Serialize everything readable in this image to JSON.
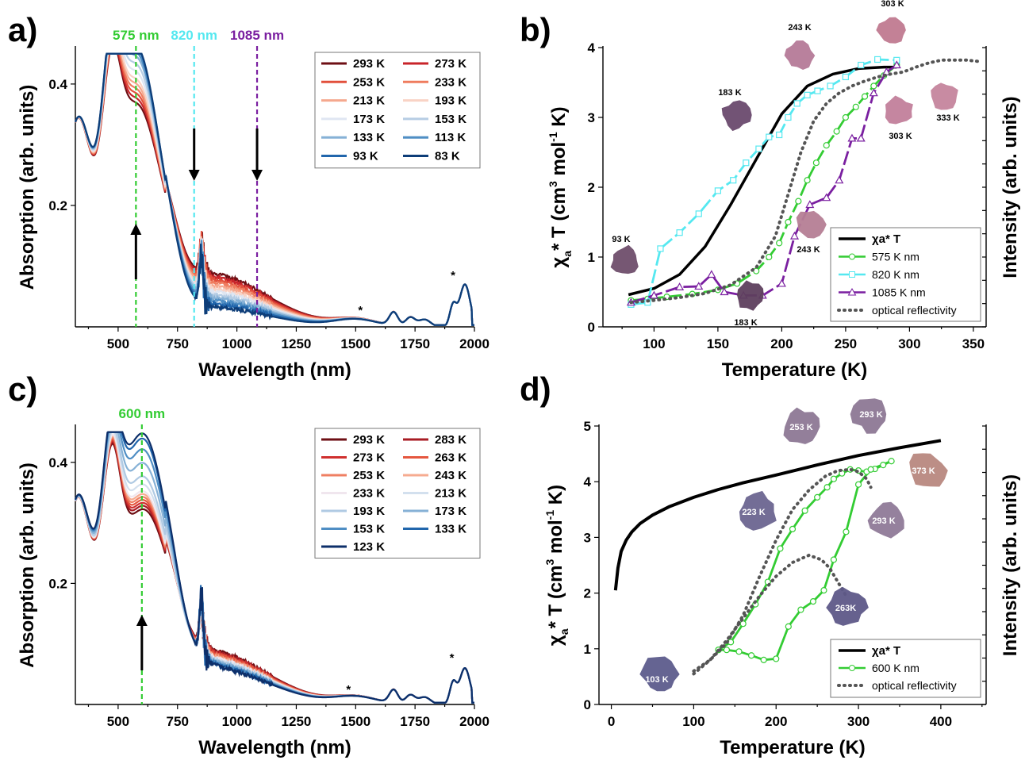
{
  "chart_data": [
    {
      "panel": "a)",
      "type": "line",
      "xlabel": "Wavelength (nm)",
      "ylabel": "Absorption (arb. units)",
      "xlim": [
        320,
        2000
      ],
      "ylim": [
        0.0,
        0.46
      ],
      "xticks": [
        "500",
        "750",
        "1000",
        "1250",
        "1500",
        "1750",
        "2000"
      ],
      "yticks": [
        "0.2",
        "0.4"
      ],
      "markers": [
        {
          "label": "575 nm",
          "x": 575,
          "color": "#33cc33"
        },
        {
          "label": "820 nm",
          "x": 820,
          "color": "#55e8f0"
        },
        {
          "label": "1085 nm",
          "x": 1085,
          "color": "#7a1fa0"
        }
      ],
      "annotations": [
        "*",
        "*"
      ],
      "legend": [
        "293 K",
        "273 K",
        "253 K",
        "233 K",
        "213 K",
        "193 K",
        "173 K",
        "153 K",
        "133 K",
        "113 K",
        "93 K",
        "83 K"
      ],
      "legend_colors": [
        "#6e0f14",
        "#c8242a",
        "#e2503c",
        "#ef7c5e",
        "#f5a88e",
        "#f9d3c5",
        "#dfe6f2",
        "#b6cde4",
        "#86b1d6",
        "#4f8ec4",
        "#2166ac",
        "#0d3d78"
      ],
      "series": [
        {
          "name": "293 K",
          "peak": 0.295
        },
        {
          "name": "273 K",
          "peak": 0.305
        },
        {
          "name": "253 K",
          "peak": 0.315
        },
        {
          "name": "233 K",
          "peak": 0.325
        },
        {
          "name": "213 K",
          "peak": 0.335
        },
        {
          "name": "193 K",
          "peak": 0.345
        },
        {
          "name": "173 K",
          "peak": 0.36
        },
        {
          "name": "153 K",
          "peak": 0.375
        },
        {
          "name": "133 K",
          "peak": 0.39
        },
        {
          "name": "113 K",
          "peak": 0.4
        },
        {
          "name": "93 K",
          "peak": 0.41
        },
        {
          "name": "83 K",
          "peak": 0.415
        }
      ]
    },
    {
      "panel": "b)",
      "type": "line",
      "xlabel": "Temperature (K)",
      "ylabel": "χa* T (cm3 mol-1 K)",
      "ylabel_right": "Intensity (arb. units)",
      "xlim": [
        60,
        360
      ],
      "ylim": [
        0,
        4
      ],
      "xticks": [
        "100",
        "150",
        "200",
        "250",
        "300",
        "350"
      ],
      "yticks": [
        "0",
        "1",
        "2",
        "3",
        "4"
      ],
      "legend": [
        "χa* T",
        "575 K nm",
        "820 K nm",
        "1085 K nm",
        "optical reflectivity"
      ],
      "crystal_labels": [
        "303 K",
        "243 K",
        "183 K",
        "333 K",
        "303 K",
        "93 K",
        "243 K",
        "183 K"
      ],
      "series": [
        {
          "name": "χa* T",
          "color": "#000000",
          "x": [
            80,
            100,
            120,
            140,
            160,
            180,
            200,
            220,
            240,
            260,
            280,
            290
          ],
          "y": [
            0.46,
            0.55,
            0.75,
            1.15,
            1.75,
            2.4,
            3.05,
            3.45,
            3.62,
            3.7,
            3.72,
            3.72
          ]
        },
        {
          "name": "575 K nm",
          "color": "#33cc33",
          "x": [
            82,
            95,
            110,
            130,
            150,
            165,
            180,
            190,
            198,
            205,
            213,
            220,
            227,
            235,
            243,
            250,
            258,
            265,
            272,
            280,
            290
          ],
          "y": [
            0.38,
            0.4,
            0.43,
            0.47,
            0.53,
            0.62,
            0.8,
            1.0,
            1.2,
            1.5,
            1.8,
            2.1,
            2.35,
            2.6,
            2.8,
            3.0,
            3.15,
            3.3,
            3.45,
            3.6,
            3.75
          ]
        },
        {
          "name": "820 K nm",
          "color": "#55e8f0",
          "x": [
            82,
            95,
            105,
            120,
            135,
            150,
            162,
            172,
            182,
            190,
            198,
            205,
            212,
            220,
            228,
            238,
            250,
            262,
            275,
            290
          ],
          "y": [
            0.32,
            0.35,
            1.12,
            1.35,
            1.62,
            1.95,
            2.1,
            2.35,
            2.55,
            2.72,
            2.75,
            3.0,
            3.2,
            3.32,
            3.38,
            3.45,
            3.58,
            3.75,
            3.83,
            3.82
          ]
        },
        {
          "name": "1085 K nm",
          "color": "#7a1fa0",
          "x": [
            82,
            100,
            120,
            135,
            145,
            155,
            170,
            185,
            200,
            210,
            222,
            235,
            245,
            255,
            262,
            272,
            282,
            290
          ],
          "y": [
            0.35,
            0.45,
            0.57,
            0.58,
            0.75,
            0.5,
            0.45,
            0.45,
            0.62,
            1.3,
            1.75,
            1.85,
            2.1,
            2.7,
            2.7,
            3.35,
            3.65,
            3.75
          ]
        },
        {
          "name": "optical reflectivity",
          "color": "#555555",
          "x": [
            82,
            100,
            120,
            140,
            160,
            180,
            195,
            205,
            215,
            225,
            235,
            245,
            255,
            265,
            275,
            285,
            295,
            305,
            315,
            325,
            335,
            345,
            355
          ],
          "y": [
            0.35,
            0.38,
            0.42,
            0.48,
            0.6,
            0.85,
            1.3,
            1.9,
            2.5,
            2.95,
            3.2,
            3.35,
            3.45,
            3.52,
            3.58,
            3.62,
            3.65,
            3.72,
            3.78,
            3.82,
            3.82,
            3.82,
            3.8
          ]
        }
      ]
    },
    {
      "panel": "c)",
      "type": "line",
      "xlabel": "Wavelength (nm)",
      "ylabel": "Absorption (arb. units)",
      "xlim": [
        320,
        2000
      ],
      "ylim": [
        0.0,
        0.46
      ],
      "xticks": [
        "500",
        "750",
        "1000",
        "1250",
        "1500",
        "1750",
        "2000"
      ],
      "yticks": [
        "0.2",
        "0.4"
      ],
      "markers": [
        {
          "label": "600 nm",
          "x": 600,
          "color": "#33cc33"
        }
      ],
      "annotations": [
        "*",
        "*"
      ],
      "legend": [
        "293 K",
        "283 K",
        "273 K",
        "263 K",
        "253 K",
        "243 K",
        "233 K",
        "213 K",
        "193 K",
        "173 K",
        "153 K",
        "133 K",
        "123 K"
      ],
      "legend_colors": [
        "#6e0f14",
        "#a81c24",
        "#d0302e",
        "#e5573f",
        "#ef7f62",
        "#f6ab90",
        "#f0e6ee",
        "#d3e0ee",
        "#b0cae3",
        "#86b1d6",
        "#4f8ec4",
        "#2166ac",
        "#0d2f6a"
      ],
      "series": [
        {
          "name": "293 K",
          "peak": 0.245
        },
        {
          "name": "283 K",
          "peak": 0.252
        },
        {
          "name": "273 K",
          "peak": 0.258
        },
        {
          "name": "263 K",
          "peak": 0.264
        },
        {
          "name": "253 K",
          "peak": 0.27
        },
        {
          "name": "243 K",
          "peak": 0.276
        },
        {
          "name": "233 K",
          "peak": 0.282
        },
        {
          "name": "213 K",
          "peak": 0.295
        },
        {
          "name": "193 K",
          "peak": 0.31
        },
        {
          "name": "173 K",
          "peak": 0.335
        },
        {
          "name": "153 K",
          "peak": 0.36
        },
        {
          "name": "133 K",
          "peak": 0.38
        },
        {
          "name": "123 K",
          "peak": 0.39
        }
      ]
    },
    {
      "panel": "d)",
      "type": "line",
      "xlabel": "Temperature (K)",
      "ylabel": "χa* T (cm3 mol-1 K)",
      "ylabel_right": "Intensity (arb. units)",
      "xlim": [
        -15,
        455
      ],
      "ylim": [
        0,
        5
      ],
      "xticks": [
        "0",
        "100",
        "200",
        "300",
        "400"
      ],
      "yticks": [
        "0",
        "1",
        "2",
        "3",
        "4",
        "5"
      ],
      "legend": [
        "χa* T",
        "600 K nm",
        "optical reflectivity"
      ],
      "crystal_labels": [
        "253 K",
        "293 K",
        "373 K",
        "223 K",
        "293 K",
        "263K",
        "103 K"
      ],
      "series": [
        {
          "name": "χa* T",
          "color": "#000000",
          "x": [
            5,
            8,
            12,
            18,
            25,
            35,
            50,
            70,
            100,
            130,
            160,
            200,
            250,
            300,
            350,
            400
          ],
          "y": [
            2.05,
            2.45,
            2.75,
            2.95,
            3.1,
            3.25,
            3.4,
            3.55,
            3.72,
            3.86,
            3.98,
            4.12,
            4.3,
            4.47,
            4.61,
            4.74
          ]
        },
        {
          "name": "600 K nm",
          "color": "#33cc33",
          "x": [
            130,
            145,
            160,
            175,
            190,
            205,
            220,
            235,
            250,
            262,
            270,
            280,
            290,
            300,
            310,
            320,
            330,
            340,
            315,
            300,
            285,
            270,
            258,
            245,
            230,
            215,
            200,
            185,
            170,
            155,
            140,
            130
          ],
          "y": [
            0.98,
            1.12,
            1.45,
            1.8,
            2.2,
            2.8,
            3.15,
            3.48,
            3.72,
            3.9,
            4.05,
            4.15,
            4.22,
            4.2,
            4.18,
            4.23,
            4.3,
            4.37,
            4.22,
            3.95,
            3.1,
            2.6,
            2.05,
            1.85,
            1.7,
            1.4,
            0.82,
            0.8,
            0.88,
            0.95,
            0.98,
            0.98
          ]
        },
        {
          "name": "optical reflectivity",
          "color": "#555555",
          "x": [
            100,
            120,
            140,
            160,
            180,
            200,
            220,
            240,
            260,
            275,
            290,
            300,
            310,
            315
          ],
          "y": [
            0.6,
            0.8,
            1.1,
            1.6,
            2.3,
            2.95,
            3.5,
            3.85,
            4.1,
            4.2,
            4.22,
            4.18,
            4.05,
            3.9
          ]
        },
        {
          "name": "optical reflectivity 2",
          "color": "#555555",
          "x": [
            100,
            120,
            140,
            160,
            180,
            200,
            220,
            240,
            255,
            265,
            275,
            285
          ],
          "y": [
            0.55,
            0.8,
            1.15,
            1.55,
            1.95,
            2.3,
            2.55,
            2.68,
            2.6,
            2.45,
            2.2,
            1.95
          ]
        }
      ]
    }
  ]
}
